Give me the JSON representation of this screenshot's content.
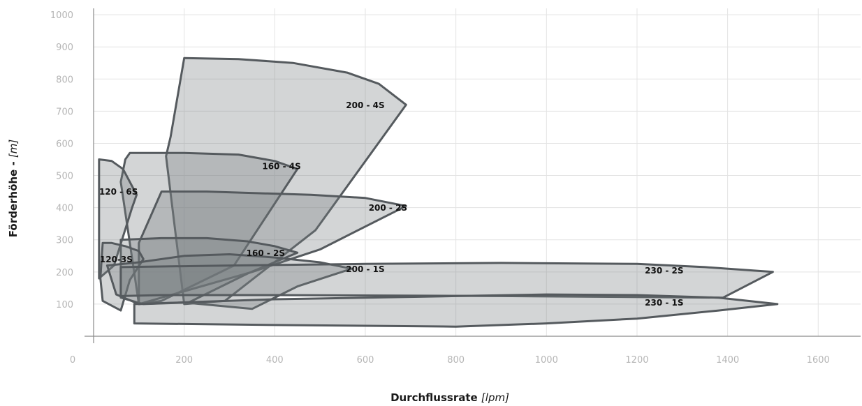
{
  "chart_data": {
    "type": "area",
    "xlabel": "Durchflussrate",
    "xlabel_unit": "[lpm]",
    "ylabel": "Förderhöhe -",
    "ylabel_unit": "[m]",
    "xlim": [
      0,
      1700
    ],
    "ylim": [
      0,
      1000
    ],
    "x_ticks": [
      0,
      200,
      400,
      600,
      800,
      1000,
      1200,
      1400,
      1600
    ],
    "y_ticks": [
      100,
      200,
      300,
      400,
      500,
      600,
      700,
      800,
      900,
      1000
    ],
    "grid": true,
    "series": [
      {
        "name": "200 - 4S",
        "label_at": [
          600,
          710
        ],
        "points": [
          [
            200,
            865
          ],
          [
            320,
            862
          ],
          [
            440,
            850
          ],
          [
            560,
            820
          ],
          [
            630,
            785
          ],
          [
            690,
            720
          ],
          [
            490,
            330
          ],
          [
            290,
            110
          ],
          [
            200,
            100
          ],
          [
            160,
            560
          ],
          [
            170,
            620
          ],
          [
            200,
            865
          ]
        ]
      },
      {
        "name": "160 - 4S",
        "label_at": [
          415,
          520
        ],
        "points": [
          [
            80,
            570
          ],
          [
            200,
            570
          ],
          [
            320,
            565
          ],
          [
            400,
            545
          ],
          [
            450,
            520
          ],
          [
            310,
            220
          ],
          [
            150,
            110
          ],
          [
            100,
            100
          ],
          [
            60,
            480
          ],
          [
            70,
            550
          ],
          [
            80,
            570
          ]
        ]
      },
      {
        "name": "120 - 6S",
        "label_at": [
          55,
          440
        ],
        "points": [
          [
            12,
            550
          ],
          [
            40,
            545
          ],
          [
            65,
            520
          ],
          [
            80,
            480
          ],
          [
            95,
            440
          ],
          [
            85,
            400
          ],
          [
            45,
            220
          ],
          [
            12,
            180
          ],
          [
            12,
            550
          ]
        ]
      },
      {
        "name": "200 - 2S",
        "label_at": [
          650,
          390
        ],
        "points": [
          [
            150,
            450
          ],
          [
            250,
            450
          ],
          [
            360,
            445
          ],
          [
            480,
            440
          ],
          [
            600,
            430
          ],
          [
            690,
            405
          ],
          [
            500,
            270
          ],
          [
            350,
            200
          ],
          [
            200,
            140
          ],
          [
            100,
            100
          ],
          [
            100,
            290
          ],
          [
            150,
            450
          ]
        ]
      },
      {
        "name": "160 - 2S",
        "label_at": [
          380,
          250
        ],
        "points": [
          [
            60,
            300
          ],
          [
            150,
            305
          ],
          [
            250,
            305
          ],
          [
            340,
            295
          ],
          [
            400,
            280
          ],
          [
            450,
            260
          ],
          [
            340,
            195
          ],
          [
            210,
            105
          ],
          [
            110,
            100
          ],
          [
            60,
            120
          ],
          [
            60,
            300
          ]
        ]
      },
      {
        "name": "120-3S",
        "label_at": [
          50,
          230
        ],
        "points": [
          [
            20,
            290
          ],
          [
            40,
            290
          ],
          [
            70,
            280
          ],
          [
            100,
            265
          ],
          [
            110,
            240
          ],
          [
            80,
            175
          ],
          [
            60,
            80
          ],
          [
            20,
            110
          ],
          [
            15,
            180
          ],
          [
            20,
            290
          ]
        ]
      },
      {
        "name": "200 - 1S",
        "label_at": [
          600,
          200
        ],
        "points": [
          [
            30,
            220
          ],
          [
            100,
            230
          ],
          [
            200,
            250
          ],
          [
            300,
            255
          ],
          [
            400,
            245
          ],
          [
            500,
            230
          ],
          [
            570,
            210
          ],
          [
            450,
            155
          ],
          [
            350,
            85
          ],
          [
            200,
            105
          ],
          [
            100,
            100
          ],
          [
            50,
            130
          ],
          [
            30,
            220
          ]
        ]
      },
      {
        "name": "230 - 2S",
        "label_at": [
          1260,
          195
        ],
        "points": [
          [
            60,
            215
          ],
          [
            300,
            220
          ],
          [
            600,
            225
          ],
          [
            900,
            228
          ],
          [
            1200,
            225
          ],
          [
            1350,
            215
          ],
          [
            1500,
            200
          ],
          [
            1390,
            120
          ],
          [
            900,
            125
          ],
          [
            400,
            128
          ],
          [
            150,
            128
          ],
          [
            60,
            125
          ],
          [
            60,
            215
          ]
        ]
      },
      {
        "name": "230 - 1S",
        "label_at": [
          1260,
          95
        ],
        "points": [
          [
            90,
            100
          ],
          [
            400,
            115
          ],
          [
            800,
            125
          ],
          [
            1000,
            130
          ],
          [
            1200,
            128
          ],
          [
            1380,
            120
          ],
          [
            1510,
            100
          ],
          [
            1380,
            80
          ],
          [
            1200,
            55
          ],
          [
            1000,
            40
          ],
          [
            800,
            30
          ],
          [
            400,
            35
          ],
          [
            90,
            40
          ],
          [
            90,
            100
          ]
        ]
      }
    ]
  }
}
